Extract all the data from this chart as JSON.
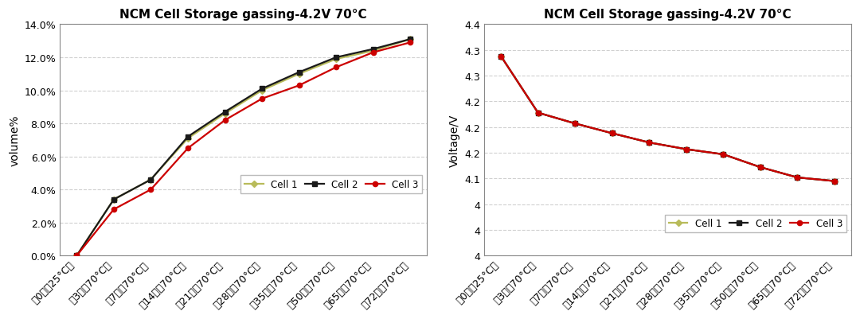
{
  "title": "NCM Cell Storage gassing-4.2V 70°C",
  "x_labels": [
    "第0天（25°C）",
    "第3天（70°C）",
    "第7天（70°C）",
    "第14天（70°C）",
    "第21天（70°C）",
    "第28天（70°C）",
    "第35天（70°C）",
    "第50天（70°C）",
    "第65天（70°C）",
    "第72天（70°C）"
  ],
  "vol_cell1": [
    0.0,
    0.034,
    0.046,
    0.071,
    0.086,
    0.1,
    0.11,
    0.119,
    0.124,
    0.131
  ],
  "vol_cell2": [
    0.0,
    0.034,
    0.046,
    0.072,
    0.087,
    0.101,
    0.111,
    0.12,
    0.125,
    0.131
  ],
  "vol_cell3": [
    0.0,
    0.028,
    0.04,
    0.065,
    0.082,
    0.095,
    0.103,
    0.114,
    0.123,
    0.129
  ],
  "volt_cell1": [
    4.338,
    4.228,
    4.207,
    4.188,
    4.17,
    4.157,
    4.147,
    4.122,
    4.102,
    4.095
  ],
  "volt_cell2": [
    4.338,
    4.228,
    4.207,
    4.188,
    4.17,
    4.157,
    4.147,
    4.122,
    4.102,
    4.095
  ],
  "volt_cell3": [
    4.338,
    4.228,
    4.207,
    4.188,
    4.17,
    4.157,
    4.147,
    4.122,
    4.102,
    4.095
  ],
  "color_cell1": "#b8bb5a",
  "color_cell2": "#1a1a1a",
  "color_cell3": "#cc0000",
  "marker_cell1": "D",
  "marker_cell2": "s",
  "marker_cell3": "o",
  "vol_ylabel": "volume%",
  "volt_ylabel": "Voltage/V",
  "vol_ylim": [
    0.0,
    0.14
  ],
  "volt_ylim": [
    3.95,
    4.4
  ],
  "vol_yticks": [
    0.0,
    0.02,
    0.04,
    0.06,
    0.08,
    0.1,
    0.12,
    0.14
  ],
  "volt_yticks": [
    3.95,
    4.0,
    4.05,
    4.1,
    4.15,
    4.2,
    4.25,
    4.3,
    4.35,
    4.4
  ],
  "background_color": "#ffffff",
  "plot_bg_color": "#ffffff",
  "grid_color": "#d0d0d0",
  "legend_labels": [
    "Cell 1",
    "Cell 2",
    "Cell 3"
  ]
}
